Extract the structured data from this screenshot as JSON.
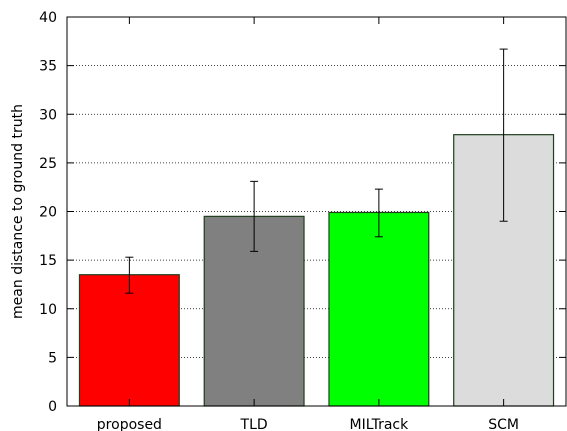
{
  "chart_data": {
    "type": "bar",
    "categories": [
      "proposed",
      "TLD",
      "MILTrack",
      "SCM"
    ],
    "values": [
      13.5,
      19.5,
      19.9,
      27.9
    ],
    "error_low": [
      11.6,
      15.9,
      17.4,
      19.0
    ],
    "error_high": [
      15.3,
      23.1,
      22.3,
      36.7
    ],
    "colors": [
      "#ff0000",
      "#808080",
      "#00ff00",
      "#dcdcdc"
    ],
    "bar_edge_color": "#1f3f1f",
    "ylabel": "mean distance to ground truth",
    "xlabel": "",
    "ylim": [
      0,
      40
    ],
    "yticks": [
      0,
      5,
      10,
      15,
      20,
      25,
      30,
      35,
      40
    ],
    "grid": "horizontal dotted"
  }
}
